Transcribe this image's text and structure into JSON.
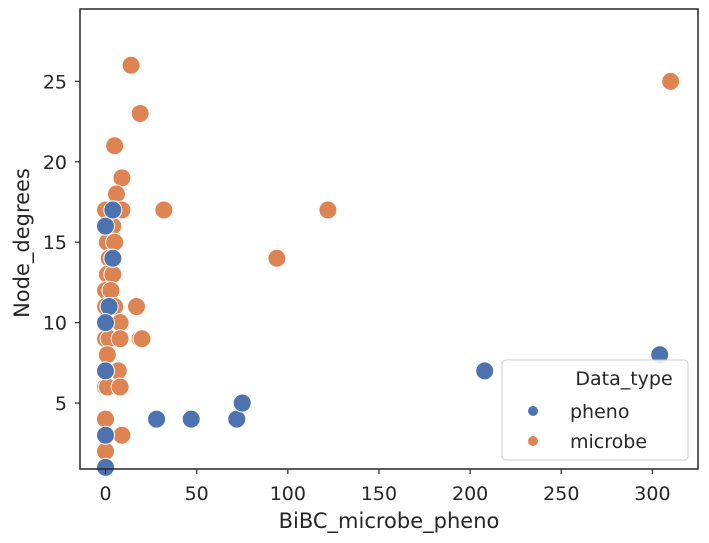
{
  "chart_data": {
    "type": "scatter",
    "xlabel": "BiBC_microbe_pheno",
    "ylabel": "Node_degrees",
    "xlim": [
      -14,
      325
    ],
    "ylim": [
      0.9,
      29.5
    ],
    "xticks": [
      0,
      50,
      100,
      150,
      200,
      250,
      300
    ],
    "yticks": [
      5,
      10,
      15,
      20,
      25
    ],
    "grid": false,
    "legend": {
      "title": "Data_type",
      "placement": "lower-right",
      "entries": [
        "pheno",
        "microbe"
      ]
    },
    "colors": {
      "pheno": "#4c72b0",
      "microbe": "#dd8452"
    },
    "series": [
      {
        "name": "microbe",
        "points": [
          [
            14,
            26
          ],
          [
            310,
            25
          ],
          [
            19,
            23
          ],
          [
            5,
            21
          ],
          [
            9,
            19
          ],
          [
            6,
            18
          ],
          [
            0,
            17
          ],
          [
            5,
            17
          ],
          [
            9,
            17
          ],
          [
            32,
            17
          ],
          [
            122,
            17
          ],
          [
            0,
            16
          ],
          [
            4,
            16
          ],
          [
            1,
            15
          ],
          [
            5,
            15
          ],
          [
            2,
            14
          ],
          [
            4,
            14
          ],
          [
            94,
            14
          ],
          [
            1,
            13
          ],
          [
            4,
            13
          ],
          [
            0,
            12
          ],
          [
            3,
            12
          ],
          [
            0,
            11
          ],
          [
            2,
            11
          ],
          [
            5,
            11
          ],
          [
            17,
            11
          ],
          [
            0,
            10
          ],
          [
            8,
            10
          ],
          [
            0,
            9
          ],
          [
            2,
            9
          ],
          [
            8,
            9
          ],
          [
            19,
            9
          ],
          [
            20,
            9
          ],
          [
            1,
            8
          ],
          [
            0,
            7
          ],
          [
            7,
            7
          ],
          [
            0,
            6
          ],
          [
            1,
            6
          ],
          [
            8,
            6
          ],
          [
            0,
            4
          ],
          [
            9,
            3
          ],
          [
            0,
            2
          ]
        ]
      },
      {
        "name": "pheno",
        "points": [
          [
            0,
            16
          ],
          [
            4,
            17
          ],
          [
            4,
            14
          ],
          [
            2,
            11
          ],
          [
            0,
            10
          ],
          [
            0,
            7
          ],
          [
            28,
            4
          ],
          [
            47,
            4
          ],
          [
            72,
            4
          ],
          [
            75,
            5
          ],
          [
            208,
            7
          ],
          [
            304,
            8
          ],
          [
            0,
            3
          ],
          [
            0,
            1
          ]
        ]
      }
    ]
  }
}
